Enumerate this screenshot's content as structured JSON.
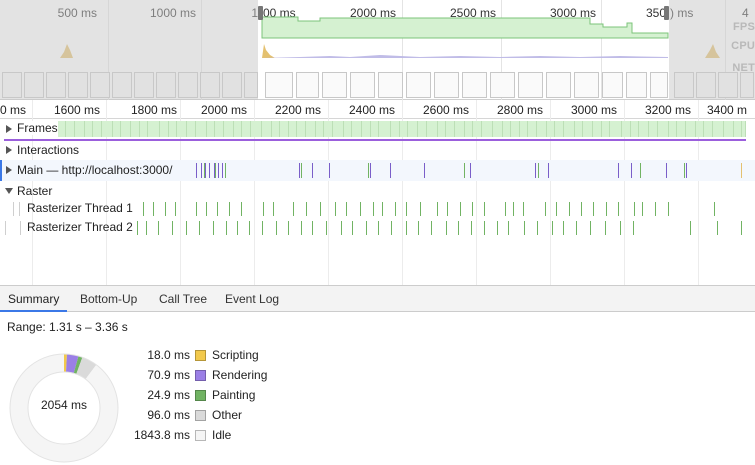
{
  "overview": {
    "ticks": [
      "500 ms",
      "1000 ms",
      "2000 ms",
      "2500 ms",
      "3000 ms"
    ],
    "tick_partial_left": "1",
    "tick_partial_left_after": "00 ms",
    "tick_partial_right": "350",
    "tick_partial_right_after": ") ms",
    "tick_partial_edge": "4",
    "track_labels": {
      "fps": "FPS",
      "cpu": "CPU",
      "net": "NET"
    }
  },
  "ruler": {
    "ticks": [
      "0 ms",
      "1600 ms",
      "1800 ms",
      "2000 ms",
      "2200 ms",
      "2400 ms",
      "2600 ms",
      "2800 ms",
      "3000 ms",
      "3200 ms",
      "3400 m"
    ]
  },
  "tracks": {
    "frames": "Frames",
    "interactions": "Interactions",
    "main": "Main — http://localhost:3000/",
    "raster": "Raster",
    "rasterizer1": "Rasterizer Thread 1",
    "rasterizer2": "Rasterizer Thread 2"
  },
  "tabs": [
    "Summary",
    "Bottom-Up",
    "Call Tree",
    "Event Log"
  ],
  "summary": {
    "range_label": "Range: 1.31 s – 3.36 s",
    "total": "2054 ms",
    "items": [
      {
        "value": "18.0 ms",
        "label": "Scripting",
        "color": "#f2c94c",
        "ms": 18.0
      },
      {
        "value": "70.9 ms",
        "label": "Rendering",
        "color": "#9b7fe6",
        "ms": 70.9
      },
      {
        "value": "24.9 ms",
        "label": "Painting",
        "color": "#71b363",
        "ms": 24.9
      },
      {
        "value": "96.0 ms",
        "label": "Other",
        "color": "#dadada",
        "ms": 96.0
      },
      {
        "value": "1843.8 ms",
        "label": "Idle",
        "color": "#f5f5f5",
        "ms": 1843.8
      }
    ]
  }
}
